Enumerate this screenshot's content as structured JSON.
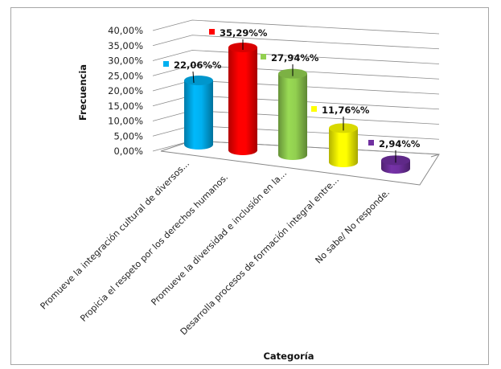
{
  "chart_data": {
    "type": "bar",
    "style": "3d-cylinder",
    "categories": [
      "Promueve la integración cultural  de diversos...",
      "Propicia el respeto por los derechos humanos.",
      "Promueve  la diversidad e  inclusión en la...",
      "Desarrolla procesos de formación integral entre...",
      "No sabe/ No responde."
    ],
    "values": [
      22.06,
      35.29,
      27.94,
      11.76,
      2.94
    ],
    "data_labels": [
      "22,06%%",
      "35,29%%",
      "27,94%%",
      "11,76%%",
      "2,94%%"
    ],
    "colors": [
      "#00B0F0",
      "#FF0000",
      "#92D050",
      "#FFFF00",
      "#7030A0"
    ],
    "xlabel": "Categoría",
    "ylabel": "Frecuencia",
    "ylim": [
      0,
      40
    ],
    "yticks": [
      "0,00%",
      "5,00%",
      "10,00%",
      "15,00%",
      "20,00%",
      "25,00%",
      "30,00%",
      "35,00%",
      "40,00%"
    ],
    "grid": true,
    "legend": "none"
  }
}
